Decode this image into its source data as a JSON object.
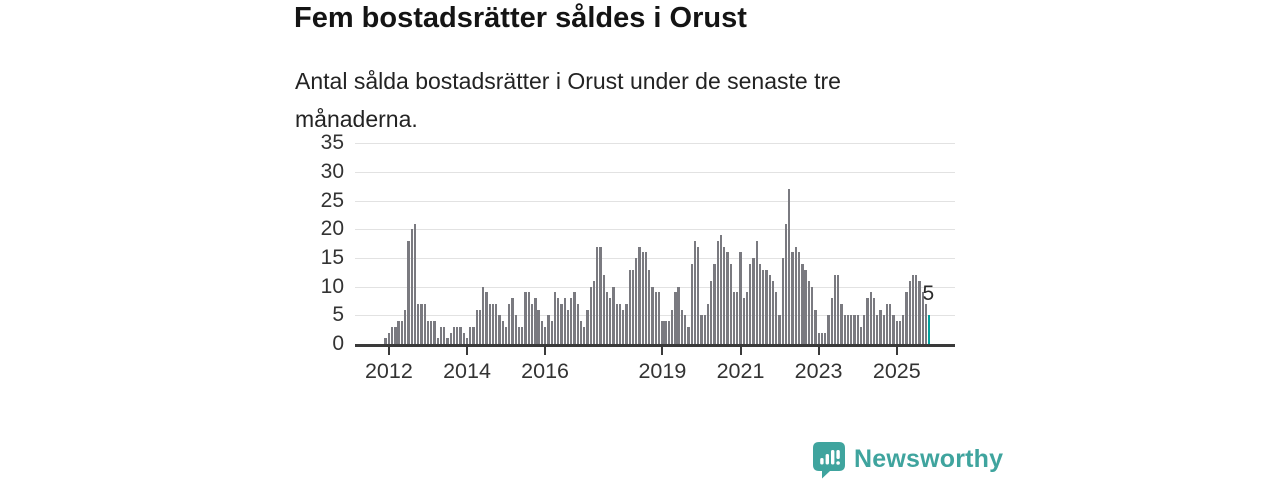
{
  "header": {
    "title": "Fem bostadsrätter såldes i Orust",
    "subtitle": "Antal sålda bostadsrätter i Orust under de senaste tre månaderna."
  },
  "chart_data": {
    "type": "bar",
    "title": "Fem bostadsrätter såldes i Orust",
    "subtitle": "Antal sålda bostadsrätter i Orust under de senaste tre månaderna.",
    "frequency": "monthly",
    "x_start": "2011-12",
    "x_end": "2025-11",
    "values": [
      1,
      2,
      3,
      3,
      4,
      4,
      6,
      18,
      20,
      21,
      7,
      7,
      7,
      4,
      4,
      4,
      1,
      3,
      3,
      1,
      2,
      3,
      3,
      3,
      2,
      1,
      3,
      3,
      6,
      6,
      10,
      9,
      7,
      7,
      7,
      5,
      4,
      3,
      7,
      8,
      5,
      3,
      3,
      9,
      9,
      7,
      8,
      6,
      4,
      3,
      5,
      4,
      9,
      8,
      7,
      8,
      6,
      8,
      9,
      7,
      4,
      3,
      6,
      10,
      11,
      17,
      17,
      12,
      9,
      8,
      10,
      7,
      7,
      6,
      7,
      13,
      13,
      15,
      17,
      16,
      16,
      13,
      10,
      9,
      9,
      4,
      4,
      4,
      6,
      9,
      10,
      6,
      5,
      3,
      14,
      18,
      17,
      5,
      5,
      7,
      11,
      14,
      18,
      19,
      17,
      16,
      14,
      9,
      9,
      16,
      8,
      9,
      14,
      15,
      18,
      14,
      13,
      13,
      12,
      11,
      9,
      5,
      15,
      21,
      27,
      16,
      17,
      16,
      14,
      13,
      11,
      10,
      6,
      2,
      2,
      2,
      5,
      8,
      12,
      12,
      7,
      5,
      5,
      5,
      5,
      5,
      3,
      5,
      8,
      9,
      8,
      5,
      6,
      5,
      7,
      7,
      5,
      4,
      4,
      5,
      9,
      11,
      12,
      12,
      11,
      9,
      7,
      5
    ],
    "x_tick_labels": [
      "2012",
      "2014",
      "2016",
      "2019",
      "2021",
      "2023",
      "2025"
    ],
    "x_tick_month_indices": [
      1,
      25,
      49,
      85,
      109,
      133,
      157
    ],
    "y_ticks": [
      0,
      5,
      10,
      15,
      20,
      25,
      30,
      35
    ],
    "ylim": [
      0,
      35
    ],
    "grid": "horizontal",
    "highlight_last": true,
    "last_value_label": "5",
    "bar_color": "#7a7a80",
    "highlight_color": "#00a19d",
    "axis_color": "#3a3a3a",
    "gridline_color": "#e2e2e2"
  },
  "attribution": {
    "brand": "Newsworthy",
    "brand_color": "#3fa49e"
  }
}
